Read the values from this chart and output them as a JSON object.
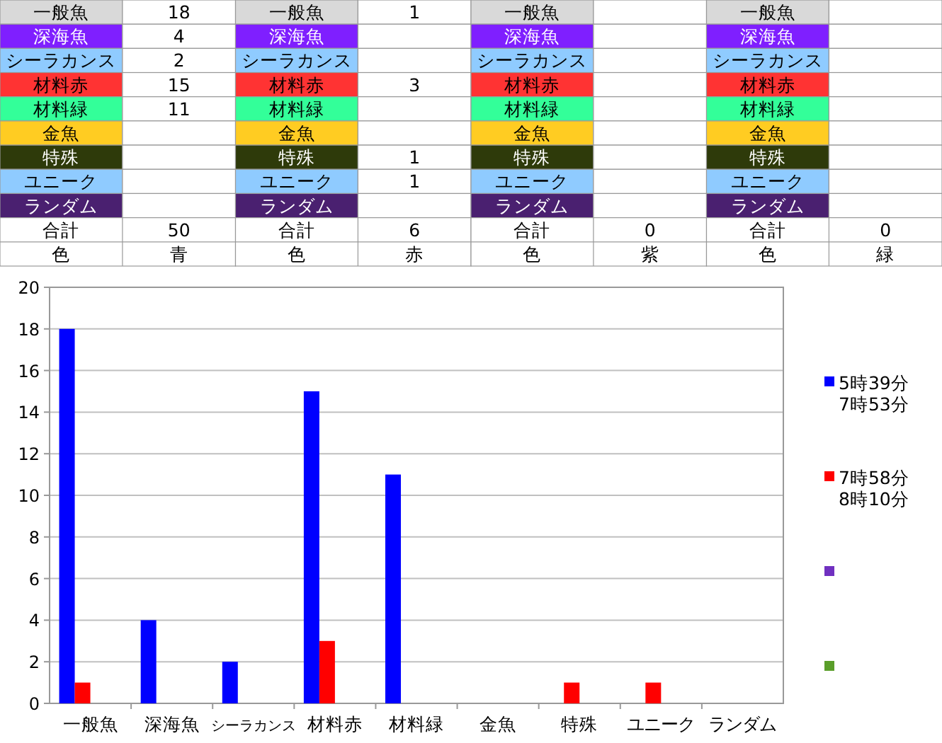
{
  "chart_data": [
    {
      "type": "other",
      "categories": [
        "一般魚",
        "深海魚",
        "シーラカンス",
        "材料赤",
        "材料緑",
        "金魚",
        "特殊",
        "ユニーク",
        "ランダム"
      ],
      "colors": [
        "#d9d9d9",
        "#7f1fff",
        "#8fcbff",
        "#ff3333",
        "#33ff99",
        "#ffcc22",
        "#2e3a0a",
        "#8fcbff",
        "#4a2070"
      ],
      "series": [
        {
          "name": "青",
          "values": [
            18,
            4,
            2,
            15,
            11,
            null,
            null,
            null,
            null
          ]
        },
        {
          "name": "赤",
          "values": [
            1,
            null,
            null,
            3,
            null,
            null,
            1,
            1,
            null
          ]
        },
        {
          "name": "紫",
          "values": [
            null,
            null,
            null,
            null,
            null,
            null,
            null,
            null,
            null
          ]
        },
        {
          "name": "緑",
          "values": [
            null,
            null,
            null,
            null,
            null,
            null,
            null,
            null,
            null
          ]
        }
      ],
      "totals": [
        "50",
        "6",
        "0",
        "0"
      ],
      "data_labels": true,
      "annotations": [
        "合計",
        "色"
      ]
    },
    {
      "type": "bar",
      "categories": [
        "一般魚",
        "深海魚",
        "シーラカンス",
        "材料赤",
        "材料緑",
        "金魚",
        "特殊",
        "ユニーク",
        "ランダム"
      ],
      "series": [
        {
          "name": "5時39分\n7時53分",
          "color": "#0000ff",
          "values": [
            18,
            4,
            2,
            15,
            11,
            null,
            null,
            null,
            null
          ]
        },
        {
          "name": "7時58分\n8時10分",
          "color": "#ff0000",
          "values": [
            1,
            null,
            null,
            3,
            null,
            null,
            1,
            1,
            null
          ]
        },
        {
          "color": "#7030c0",
          "values": [
            null,
            null,
            null,
            null,
            null,
            null,
            null,
            null,
            null
          ]
        },
        {
          "color": "#5a9e2a",
          "values": [
            null,
            null,
            null,
            null,
            null,
            null,
            null,
            null,
            null
          ]
        }
      ],
      "ylim": [
        0,
        20
      ],
      "yticks": [
        0,
        2,
        4,
        6,
        8,
        10,
        12,
        14,
        16,
        18,
        20
      ],
      "grid": "y",
      "legend": "right"
    }
  ]
}
